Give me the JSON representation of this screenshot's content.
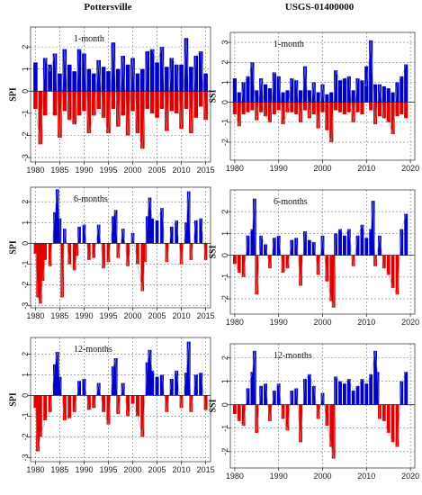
{
  "figure": {
    "left_title": "Pottersville",
    "right_title": "USGS-01400000"
  },
  "colors": {
    "positive": "#0000c8",
    "negative": "#e00000",
    "line": "#9a9a9a",
    "grid": "#7a7a7a",
    "frame": "#444444"
  },
  "chart_data": [
    {
      "type": "area",
      "panel": "left-1",
      "label": "1-month",
      "ylabel": "SPI",
      "xlim": [
        1979,
        2016
      ],
      "ylim": [
        -3.2,
        2.9
      ],
      "xticks": [
        1980,
        1985,
        1990,
        1995,
        2000,
        2005,
        2010,
        2015
      ],
      "xtick_labels": [
        "1980",
        "1985",
        "1990",
        "1995",
        "2000",
        "2005",
        "2010",
        "2015"
      ],
      "yticks": [
        -3,
        -2,
        -1,
        0,
        1,
        2
      ],
      "ytick_labels": [
        "-3",
        "-2",
        "-1",
        "0",
        "1",
        "2"
      ],
      "grid_x": [
        1980,
        1985,
        1990,
        1995,
        2000,
        2005,
        2010,
        2015
      ],
      "grid_y": [
        -3,
        -2,
        -1,
        0,
        1,
        2
      ],
      "x": [
        1980,
        1981,
        1982,
        1983,
        1984,
        1985,
        1986,
        1987,
        1988,
        1989,
        1990,
        1991,
        1992,
        1993,
        1994,
        1995,
        1996,
        1997,
        1998,
        1999,
        2000,
        2001,
        2002,
        2003,
        2004,
        2005,
        2006,
        2007,
        2008,
        2009,
        2010,
        2011,
        2012,
        2013,
        2014,
        2015
      ],
      "series": [
        {
          "values": [
            -0.8,
            -2.4,
            1.5,
            0.9,
            1.7,
            -2.1,
            1.9,
            -1.3,
            -1.5,
            1.9,
            1.7,
            -1.9,
            -1.1,
            1.4,
            -1.2,
            -1.9,
            2.2,
            -1.6,
            1.6,
            -2.0,
            1.5,
            -1.9,
            -2.6,
            1.8,
            1.9,
            1.3,
            2.0,
            -1.8,
            1.5,
            1.2,
            -1.7,
            2.4,
            -1.9,
            1.6,
            1.8,
            -1.3
          ]
        },
        {
          "values": [
            1.3,
            -0.7,
            -1.1,
            1.2,
            -1.1,
            0.8,
            -0.9,
            1.2,
            0.9,
            -1.1,
            -0.9,
            1.0,
            0.8,
            -0.8,
            1.1,
            0.9,
            -0.8,
            1.0,
            -1.1,
            1.2,
            -0.9,
            0.8,
            1.0,
            -0.8,
            -1.0,
            -1.2,
            -0.8,
            1.1,
            -0.9,
            -1.0,
            1.2,
            -0.8,
            1.1,
            -1.2,
            -0.7,
            0.8
          ]
        }
      ]
    },
    {
      "type": "area",
      "panel": "right-1",
      "label": "1-month",
      "ylabel": "SSI",
      "xlim": [
        1979,
        2021
      ],
      "ylim": [
        -2.9,
        3.5
      ],
      "xticks": [
        1980,
        1990,
        2000,
        2010,
        2020
      ],
      "xtick_labels": [
        "1980",
        "1990",
        "2000",
        "2010",
        "2020"
      ],
      "yticks": [
        -2,
        -1,
        0,
        1,
        2,
        3
      ],
      "ytick_labels": [
        "-2",
        "-1",
        "0",
        "1",
        "2",
        "3"
      ],
      "grid_x": [
        1980,
        1990,
        2000,
        2010,
        2020
      ],
      "grid_y": [
        -2,
        -1,
        0,
        1,
        2,
        3
      ],
      "x": [
        1980,
        1981,
        1982,
        1983,
        1984,
        1985,
        1986,
        1987,
        1988,
        1989,
        1990,
        1991,
        1992,
        1993,
        1994,
        1995,
        1996,
        1997,
        1998,
        1999,
        2000,
        2001,
        2002,
        2003,
        2004,
        2005,
        2006,
        2007,
        2008,
        2009,
        2010,
        2011,
        2012,
        2013,
        2014,
        2015,
        2016,
        2017,
        2018,
        2019
      ],
      "series": [
        {
          "values": [
            -0.6,
            -1.2,
            1.0,
            1.3,
            2.0,
            -0.9,
            1.2,
            -0.7,
            -1.0,
            1.5,
            1.3,
            -1.1,
            -0.5,
            1.2,
            1.1,
            -1.0,
            1.8,
            -0.8,
            1.0,
            -1.3,
            0.9,
            -1.4,
            -2.0,
            1.6,
            1.1,
            1.2,
            1.3,
            -1.0,
            1.2,
            1.1,
            0.8,
            3.1,
            -1.1,
            0.9,
            -0.8,
            -1.0,
            -1.6,
            1.0,
            1.3,
            1.9
          ]
        },
        {
          "values": [
            1.2,
            0.5,
            -0.6,
            -0.5,
            -0.4,
            0.6,
            -0.5,
            0.9,
            0.7,
            -0.6,
            -0.4,
            0.5,
            0.6,
            -0.5,
            -0.6,
            0.6,
            -0.4,
            0.6,
            -0.6,
            0.5,
            -0.5,
            0.4,
            0.5,
            -0.4,
            -0.5,
            -0.6,
            -0.5,
            0.6,
            -0.5,
            -0.6,
            1.8,
            -0.4,
            0.9,
            -0.7,
            0.8,
            0.7,
            0.5,
            -0.7,
            -0.6,
            -0.8
          ]
        }
      ]
    },
    {
      "type": "area",
      "panel": "left-6",
      "label": "6-months",
      "ylabel": "SPI",
      "xlim": [
        1979,
        2016
      ],
      "ylim": [
        -3.1,
        2.7
      ],
      "xticks": [
        1980,
        1985,
        1990,
        1995,
        2000,
        2005,
        2010,
        2015
      ],
      "xtick_labels": [
        "1980",
        "1985",
        "1990",
        "1995",
        "2000",
        "2005",
        "2010",
        "2015"
      ],
      "yticks": [
        -3,
        -2,
        -1,
        0,
        1,
        2
      ],
      "ytick_labels": [
        "-3",
        "-2",
        "-1",
        "0",
        "1",
        "2"
      ],
      "grid_x": [
        1980,
        1985,
        1990,
        1995,
        2000,
        2005,
        2010,
        2015
      ],
      "grid_y": [
        -3,
        -2,
        -1,
        0,
        1,
        2
      ],
      "x": [
        1980,
        1980.5,
        1981,
        1981.5,
        1982,
        1983,
        1984,
        1984.5,
        1985,
        1985.5,
        1986,
        1987,
        1988,
        1988.5,
        1989,
        1990,
        1991,
        1992,
        1993,
        1994,
        1995,
        1996,
        1996.5,
        1997,
        1998,
        1999,
        2000,
        2001,
        2002,
        2002.5,
        2003,
        2003.5,
        2004,
        2005,
        2006,
        2007,
        2008,
        2009,
        2010,
        2011,
        2011.5,
        2012,
        2013,
        2014,
        2015
      ],
      "series": [
        {
          "values": [
            -0.5,
            -2.6,
            -2.9,
            -1.8,
            -0.8,
            -1.1,
            1.5,
            2.6,
            1.2,
            -2.6,
            0.7,
            -1.0,
            -1.3,
            -0.6,
            0.8,
            0.9,
            -0.8,
            -0.7,
            0.9,
            -1.2,
            -0.9,
            1.3,
            1.6,
            -0.7,
            0.7,
            -1.1,
            0.5,
            -1.0,
            -2.3,
            -0.9,
            1.3,
            2.2,
            1.2,
            1.1,
            1.7,
            -0.9,
            0.8,
            1.1,
            -1.0,
            1.0,
            2.5,
            -0.8,
            1.1,
            1.2,
            -0.8
          ]
        }
      ]
    },
    {
      "type": "area",
      "panel": "right-6",
      "label": "6-months",
      "ylabel": "SSI",
      "xlim": [
        1979,
        2021
      ],
      "ylim": [
        -2.7,
        3.0
      ],
      "xticks": [
        1980,
        1990,
        2000,
        2010,
        2020
      ],
      "xtick_labels": [
        "1980",
        "1990",
        "2000",
        "2010",
        "2020"
      ],
      "yticks": [
        -2,
        -1,
        0,
        1,
        2
      ],
      "ytick_labels": [
        "-2",
        "-1",
        "0",
        "1",
        "2"
      ],
      "grid_x": [
        1980,
        1990,
        2000,
        2010,
        2020
      ],
      "grid_y": [
        -2,
        -1,
        0,
        1,
        2
      ],
      "x": [
        1980,
        1981,
        1982,
        1983,
        1984,
        1984.5,
        1985,
        1986,
        1987,
        1988,
        1989,
        1990,
        1991,
        1992,
        1993,
        1994,
        1995,
        1996,
        1997,
        1998,
        1999,
        2000,
        2001,
        2002,
        2002.5,
        2003,
        2004,
        2005,
        2006,
        2007,
        2008,
        2009,
        2010,
        2011,
        2011.5,
        2012,
        2013,
        2014,
        2015,
        2016,
        2017,
        2018,
        2019
      ],
      "series": [
        {
          "values": [
            -0.4,
            -0.8,
            -1.0,
            0.9,
            1.2,
            2.6,
            -1.8,
            0.9,
            0.5,
            -0.6,
            0.8,
            0.9,
            -0.8,
            -0.6,
            0.7,
            0.8,
            -1.4,
            1.1,
            0.7,
            0.6,
            -0.9,
            0.9,
            -1.2,
            -2.1,
            -2.4,
            1.0,
            1.2,
            0.9,
            1.2,
            -0.5,
            0.9,
            1.4,
            0.8,
            1.2,
            2.5,
            -0.5,
            0.9,
            -0.6,
            -0.9,
            -1.5,
            -1.8,
            1.2,
            1.9
          ]
        }
      ]
    },
    {
      "type": "area",
      "panel": "left-12",
      "label": "12-months",
      "ylabel": "SPI",
      "xlim": [
        1979,
        2016
      ],
      "ylim": [
        -3.2,
        2.8
      ],
      "xticks": [
        1980,
        1985,
        1990,
        1995,
        2000,
        2005,
        2010,
        2015
      ],
      "xtick_labels": [
        "1980",
        "1985",
        "1990",
        "1995",
        "2000",
        "2005",
        "2010",
        "2015"
      ],
      "yticks": [
        -3,
        -2,
        -1,
        0,
        1,
        2
      ],
      "ytick_labels": [
        "-3",
        "-2",
        "-1",
        "0",
        "1",
        "2"
      ],
      "grid_x": [
        1980,
        1985,
        1990,
        1995,
        2000,
        2005,
        2010,
        2015
      ],
      "grid_y": [
        -3,
        -2,
        -1,
        0,
        1,
        2
      ],
      "x": [
        1980,
        1980.5,
        1981,
        1982,
        1983,
        1984,
        1984.5,
        1985,
        1986,
        1987,
        1988,
        1989,
        1990,
        1991,
        1992,
        1993,
        1994,
        1995,
        1996,
        1996.5,
        1997,
        1998,
        1999,
        2000,
        2001,
        2002,
        2003,
        2003.5,
        2004,
        2005,
        2006,
        2007,
        2008,
        2009,
        2010,
        2011,
        2011.5,
        2012,
        2013,
        2014,
        2015
      ],
      "series": [
        {
          "values": [
            -0.6,
            -2.7,
            -2.0,
            -1.2,
            -0.8,
            1.5,
            2.1,
            0.9,
            -1.2,
            -1.1,
            -0.8,
            0.7,
            0.8,
            -0.7,
            -0.6,
            0.6,
            -0.8,
            -1.4,
            1.4,
            1.8,
            -0.9,
            0.6,
            -1.0,
            -0.4,
            -1.0,
            -2.0,
            1.6,
            2.2,
            1.2,
            0.9,
            1.0,
            -0.8,
            0.8,
            1.2,
            -0.6,
            1.1,
            2.6,
            -0.8,
            1.0,
            1.1,
            -0.7
          ]
        }
      ]
    },
    {
      "type": "area",
      "panel": "right-12",
      "label": "12-months",
      "ylabel": "SSI",
      "xlim": [
        1979,
        2021
      ],
      "ylim": [
        -2.7,
        2.6
      ],
      "xticks": [
        1980,
        1990,
        2000,
        2010,
        2020
      ],
      "xtick_labels": [
        "1980",
        "1990",
        "2000",
        "2010",
        "2020"
      ],
      "yticks": [
        -2,
        -1,
        0,
        1,
        2
      ],
      "ytick_labels": [
        "-2",
        "-1",
        "0",
        "1",
        "2"
      ],
      "grid_x": [
        1980,
        1990,
        2000,
        2010,
        2020
      ],
      "grid_y": [
        -2,
        -1,
        0,
        1,
        2
      ],
      "x": [
        1980,
        1981,
        1982,
        1983,
        1984,
        1984.5,
        1985,
        1986,
        1987,
        1988,
        1989,
        1990,
        1991,
        1992,
        1993,
        1994,
        1995,
        1996,
        1997,
        1998,
        1999,
        2000,
        2001,
        2002,
        2002.5,
        2003,
        2004,
        2005,
        2006,
        2007,
        2008,
        2009,
        2010,
        2011,
        2012,
        2012.5,
        2013,
        2014,
        2015,
        2016,
        2017,
        2018,
        2019
      ],
      "series": [
        {
          "values": [
            -0.4,
            -0.7,
            -0.9,
            0.7,
            1.4,
            2.3,
            -1.2,
            0.8,
            0.9,
            -0.7,
            0.6,
            0.9,
            -0.6,
            -1.1,
            0.6,
            0.7,
            -1.6,
            1.1,
            1.3,
            0.8,
            -0.6,
            0.5,
            -0.9,
            -1.8,
            -2.3,
            1.2,
            1.0,
            0.9,
            1.1,
            0.6,
            0.8,
            1.1,
            0.9,
            1.3,
            2.3,
            1.4,
            -0.6,
            -0.7,
            -1.2,
            -1.6,
            -1.8,
            1.0,
            1.4
          ]
        }
      ]
    }
  ]
}
